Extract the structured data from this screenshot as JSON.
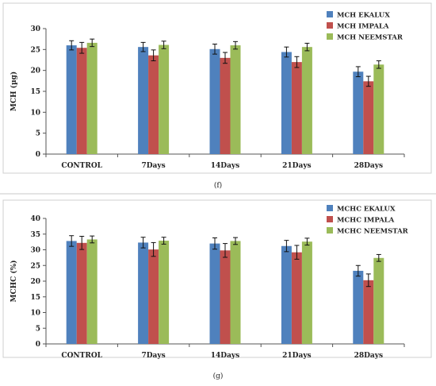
{
  "chart_data": [
    {
      "type": "bar",
      "caption": "(f)",
      "ylabel": "MCH (µg)",
      "ylim": [
        0,
        30
      ],
      "yticks": [
        0,
        5,
        10,
        15,
        20,
        25,
        30
      ],
      "categories": [
        "CONTROL",
        "7Days",
        "14Days",
        "21Days",
        "28Days"
      ],
      "legend_position": "top-right",
      "series": [
        {
          "name": "MCH EKALUX",
          "color": "#4f81bd",
          "values": [
            26.0,
            25.6,
            25.1,
            24.4,
            19.7
          ],
          "errors": [
            1.1,
            1.1,
            1.2,
            1.2,
            1.2
          ]
        },
        {
          "name": "MCH IMPALA",
          "color": "#c0504d",
          "values": [
            25.4,
            23.6,
            23.0,
            22.0,
            17.4
          ],
          "errors": [
            1.3,
            1.3,
            1.3,
            1.3,
            1.2
          ]
        },
        {
          "name": "MCH NEEMSTAR",
          "color": "#9bbb59",
          "values": [
            26.6,
            26.1,
            26.0,
            25.6,
            21.4
          ],
          "errors": [
            0.9,
            0.9,
            0.9,
            0.9,
            0.9
          ]
        }
      ]
    },
    {
      "type": "bar",
      "caption": "(g)",
      "ylabel": "MCHC (%)",
      "ylim": [
        0,
        40
      ],
      "yticks": [
        0,
        5,
        10,
        15,
        20,
        25,
        30,
        35,
        40
      ],
      "categories": [
        "CONTROL",
        "7Days",
        "14Days",
        "21Days",
        "28Days"
      ],
      "legend_position": "top-right",
      "series": [
        {
          "name": "MCHC EKALUX",
          "color": "#4f81bd",
          "values": [
            32.8,
            32.3,
            32.0,
            31.2,
            23.3
          ],
          "errors": [
            1.7,
            1.7,
            1.8,
            1.8,
            1.7
          ]
        },
        {
          "name": "MCHC IMPALA",
          "color": "#c0504d",
          "values": [
            32.2,
            30.1,
            29.8,
            29.2,
            20.3
          ],
          "errors": [
            2.1,
            2.2,
            2.2,
            2.2,
            2.0
          ]
        },
        {
          "name": "MCHC NEEMSTAR",
          "color": "#9bbb59",
          "values": [
            33.3,
            32.9,
            32.8,
            32.6,
            27.4
          ],
          "errors": [
            1.1,
            1.1,
            1.1,
            1.1,
            1.1
          ]
        }
      ]
    }
  ]
}
